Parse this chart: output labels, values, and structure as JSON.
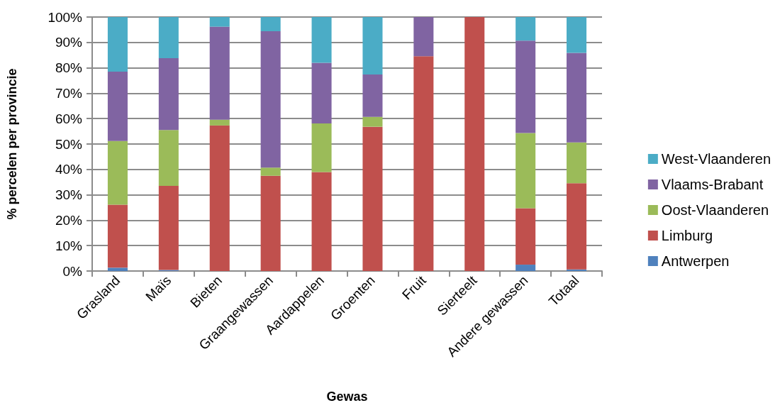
{
  "chart_data": {
    "type": "bar",
    "stacked": true,
    "xlabel": "Gewas",
    "ylabel": "% percelen per provincie",
    "categories": [
      "Grasland",
      "Maïs",
      "Bieten",
      "Graangewassen",
      "Aardappelen",
      "Groenten",
      "Fruit",
      "Sierteelt",
      "Andere gewassen",
      "Totaal"
    ],
    "series": [
      {
        "name": "Antwerpen",
        "color": "#4f81bd",
        "values": [
          1.3,
          0.4,
          0,
          0,
          0,
          0,
          0,
          0,
          2.5,
          0.6
        ]
      },
      {
        "name": "Limburg",
        "color": "#c0504d",
        "values": [
          24.8,
          33.1,
          57.3,
          37.5,
          39.0,
          56.8,
          84.6,
          100,
          22.2,
          34.0
        ]
      },
      {
        "name": "Oost-Vlaanderen",
        "color": "#9bbb59",
        "values": [
          25.1,
          22.0,
          2.3,
          3.2,
          19.1,
          3.9,
          0,
          0,
          29.6,
          16.0
        ]
      },
      {
        "name": "Vlaams-Brabant",
        "color": "#8064a2",
        "values": [
          27.3,
          28.3,
          36.6,
          53.7,
          23.9,
          16.7,
          15.4,
          0,
          36.4,
          35.3
        ]
      },
      {
        "name": "West-Vlaanderen",
        "color": "#4bacc6",
        "values": [
          21.5,
          16.2,
          3.8,
          5.6,
          18.0,
          22.6,
          0,
          0,
          9.3,
          14.1
        ]
      }
    ],
    "ylim": [
      0,
      100
    ],
    "yticks": [
      {
        "value": 0,
        "label": "0%"
      },
      {
        "value": 10,
        "label": "10%"
      },
      {
        "value": 20,
        "label": "20%"
      },
      {
        "value": 30,
        "label": "30%"
      },
      {
        "value": 40,
        "label": "40%"
      },
      {
        "value": 50,
        "label": "50%"
      },
      {
        "value": 60,
        "label": "60%"
      },
      {
        "value": 70,
        "label": "70%"
      },
      {
        "value": 80,
        "label": "80%"
      },
      {
        "value": 90,
        "label": "90%"
      },
      {
        "value": 100,
        "label": "100%"
      }
    ],
    "grid": "y",
    "legend": "right"
  }
}
